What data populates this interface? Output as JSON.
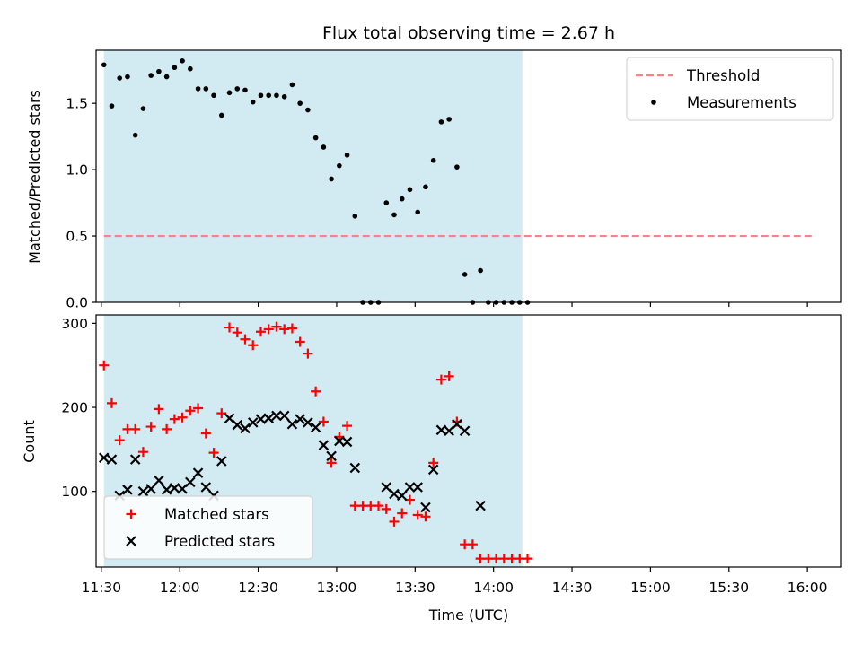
{
  "chart_data": {
    "title": "Flux total observing time = 2.67 h",
    "xlabel": "Time (UTC)",
    "x_ticks": [
      "11:30",
      "12:00",
      "12:30",
      "13:00",
      "13:30",
      "14:00",
      "14:30",
      "15:00",
      "15:30",
      "16:00"
    ],
    "shaded_interval": [
      "11:31",
      "14:11"
    ],
    "shaded_color": "#add8e6",
    "panels": [
      {
        "type": "scatter",
        "ylabel": "Matched/Predicted stars",
        "ylim": [
          0,
          1.9
        ],
        "y_ticks": [
          "0.0",
          "0.5",
          "1.0",
          "1.5"
        ],
        "legend_position": "top-right",
        "threshold": {
          "name": "Threshold",
          "value": 0.5,
          "x_range": [
            "11:31",
            "16:03"
          ],
          "color": "#ff8080",
          "style": "dashed"
        },
        "series": [
          {
            "name": "Measurements",
            "color": "#000000",
            "marker": "dot",
            "points": [
              [
                "11:31",
                1.79
              ],
              [
                "11:34",
                1.48
              ],
              [
                "11:37",
                1.69
              ],
              [
                "11:40",
                1.7
              ],
              [
                "11:43",
                1.26
              ],
              [
                "11:46",
                1.46
              ],
              [
                "11:49",
                1.71
              ],
              [
                "11:52",
                1.74
              ],
              [
                "11:55",
                1.7
              ],
              [
                "11:58",
                1.77
              ],
              [
                "12:01",
                1.82
              ],
              [
                "12:04",
                1.76
              ],
              [
                "12:07",
                1.61
              ],
              [
                "12:10",
                1.61
              ],
              [
                "12:13",
                1.56
              ],
              [
                "12:16",
                1.41
              ],
              [
                "12:19",
                1.58
              ],
              [
                "12:22",
                1.61
              ],
              [
                "12:25",
                1.6
              ],
              [
                "12:28",
                1.51
              ],
              [
                "12:31",
                1.56
              ],
              [
                "12:34",
                1.56
              ],
              [
                "12:37",
                1.56
              ],
              [
                "12:40",
                1.55
              ],
              [
                "12:43",
                1.64
              ],
              [
                "12:46",
                1.5
              ],
              [
                "12:49",
                1.45
              ],
              [
                "12:52",
                1.24
              ],
              [
                "12:55",
                1.17
              ],
              [
                "12:58",
                0.93
              ],
              [
                "13:01",
                1.03
              ],
              [
                "13:04",
                1.11
              ],
              [
                "13:07",
                0.65
              ],
              [
                "13:10",
                0.0
              ],
              [
                "13:13",
                0.0
              ],
              [
                "13:16",
                0.0
              ],
              [
                "13:19",
                0.75
              ],
              [
                "13:22",
                0.66
              ],
              [
                "13:25",
                0.78
              ],
              [
                "13:28",
                0.85
              ],
              [
                "13:31",
                0.68
              ],
              [
                "13:34",
                0.87
              ],
              [
                "13:37",
                1.07
              ],
              [
                "13:40",
                1.36
              ],
              [
                "13:43",
                1.38
              ],
              [
                "13:46",
                1.02
              ],
              [
                "13:49",
                0.21
              ],
              [
                "13:52",
                0.0
              ],
              [
                "13:55",
                0.24
              ],
              [
                "13:58",
                0.0
              ],
              [
                "14:01",
                0.0
              ],
              [
                "14:04",
                0.0
              ],
              [
                "14:07",
                0.0
              ],
              [
                "14:10",
                0.0
              ],
              [
                "14:13",
                0.0
              ]
            ]
          }
        ]
      },
      {
        "type": "scatter",
        "ylabel": "Count",
        "ylim": [
          10,
          310
        ],
        "y_ticks": [
          "100",
          "200",
          "300"
        ],
        "legend_position": "bottom-left",
        "series": [
          {
            "name": "Matched stars",
            "color": "#ff0000",
            "marker": "plus",
            "points": [
              [
                "11:31",
                250
              ],
              [
                "11:34",
                205
              ],
              [
                "11:37",
                161
              ],
              [
                "11:40",
                174
              ],
              [
                "11:43",
                174
              ],
              [
                "11:46",
                147
              ],
              [
                "11:49",
                177
              ],
              [
                "11:52",
                198
              ],
              [
                "11:55",
                174
              ],
              [
                "11:58",
                186
              ],
              [
                "12:01",
                188
              ],
              [
                "12:04",
                196
              ],
              [
                "12:07",
                199
              ],
              [
                "12:10",
                169
              ],
              [
                "12:13",
                146
              ],
              [
                "12:16",
                193
              ],
              [
                "12:19",
                295
              ],
              [
                "12:22",
                289
              ],
              [
                "12:25",
                281
              ],
              [
                "12:28",
                274
              ],
              [
                "12:31",
                290
              ],
              [
                "12:34",
                293
              ],
              [
                "12:37",
                296
              ],
              [
                "12:40",
                293
              ],
              [
                "12:43",
                294
              ],
              [
                "12:46",
                278
              ],
              [
                "12:49",
                264
              ],
              [
                "12:52",
                219
              ],
              [
                "12:55",
                183
              ],
              [
                "12:58",
                134
              ],
              [
                "13:01",
                165
              ],
              [
                "13:04",
                178
              ],
              [
                "13:07",
                83
              ],
              [
                "13:10",
                83
              ],
              [
                "13:13",
                83
              ],
              [
                "13:16",
                83
              ],
              [
                "13:19",
                79
              ],
              [
                "13:22",
                64
              ],
              [
                "13:25",
                74
              ],
              [
                "13:28",
                90
              ],
              [
                "13:31",
                72
              ],
              [
                "13:34",
                70
              ],
              [
                "13:37",
                134
              ],
              [
                "13:40",
                233
              ],
              [
                "13:43",
                237
              ],
              [
                "13:46",
                183
              ],
              [
                "13:49",
                37
              ],
              [
                "13:52",
                37
              ],
              [
                "13:55",
                20
              ],
              [
                "13:58",
                20
              ],
              [
                "14:01",
                20
              ],
              [
                "14:04",
                20
              ],
              [
                "14:07",
                20
              ],
              [
                "14:10",
                20
              ],
              [
                "14:13",
                20
              ]
            ]
          },
          {
            "name": "Predicted stars",
            "color": "#000000",
            "marker": "x",
            "points": [
              [
                "11:31",
                140
              ],
              [
                "11:34",
                138
              ],
              [
                "11:37",
                95
              ],
              [
                "11:40",
                102
              ],
              [
                "11:43",
                138
              ],
              [
                "11:46",
                100
              ],
              [
                "11:49",
                103
              ],
              [
                "11:52",
                113
              ],
              [
                "11:55",
                102
              ],
              [
                "11:58",
                104
              ],
              [
                "12:01",
                103
              ],
              [
                "12:04",
                111
              ],
              [
                "12:07",
                122
              ],
              [
                "12:10",
                105
              ],
              [
                "12:13",
                95
              ],
              [
                "12:16",
                136
              ],
              [
                "12:19",
                187
              ],
              [
                "12:22",
                179
              ],
              [
                "12:25",
                175
              ],
              [
                "12:28",
                182
              ],
              [
                "12:31",
                186
              ],
              [
                "12:34",
                187
              ],
              [
                "12:37",
                190
              ],
              [
                "12:40",
                190
              ],
              [
                "12:43",
                180
              ],
              [
                "12:46",
                186
              ],
              [
                "12:49",
                182
              ],
              [
                "12:52",
                176
              ],
              [
                "12:55",
                155
              ],
              [
                "12:58",
                142
              ],
              [
                "13:01",
                160
              ],
              [
                "13:04",
                159
              ],
              [
                "13:07",
                128
              ],
              [
                "13:19",
                105
              ],
              [
                "13:22",
                97
              ],
              [
                "13:25",
                95
              ],
              [
                "13:28",
                105
              ],
              [
                "13:31",
                105
              ],
              [
                "13:34",
                81
              ],
              [
                "13:37",
                126
              ],
              [
                "13:40",
                173
              ],
              [
                "13:43",
                172
              ],
              [
                "13:46",
                180
              ],
              [
                "13:49",
                172
              ],
              [
                "13:55",
                83
              ]
            ]
          }
        ]
      }
    ]
  }
}
